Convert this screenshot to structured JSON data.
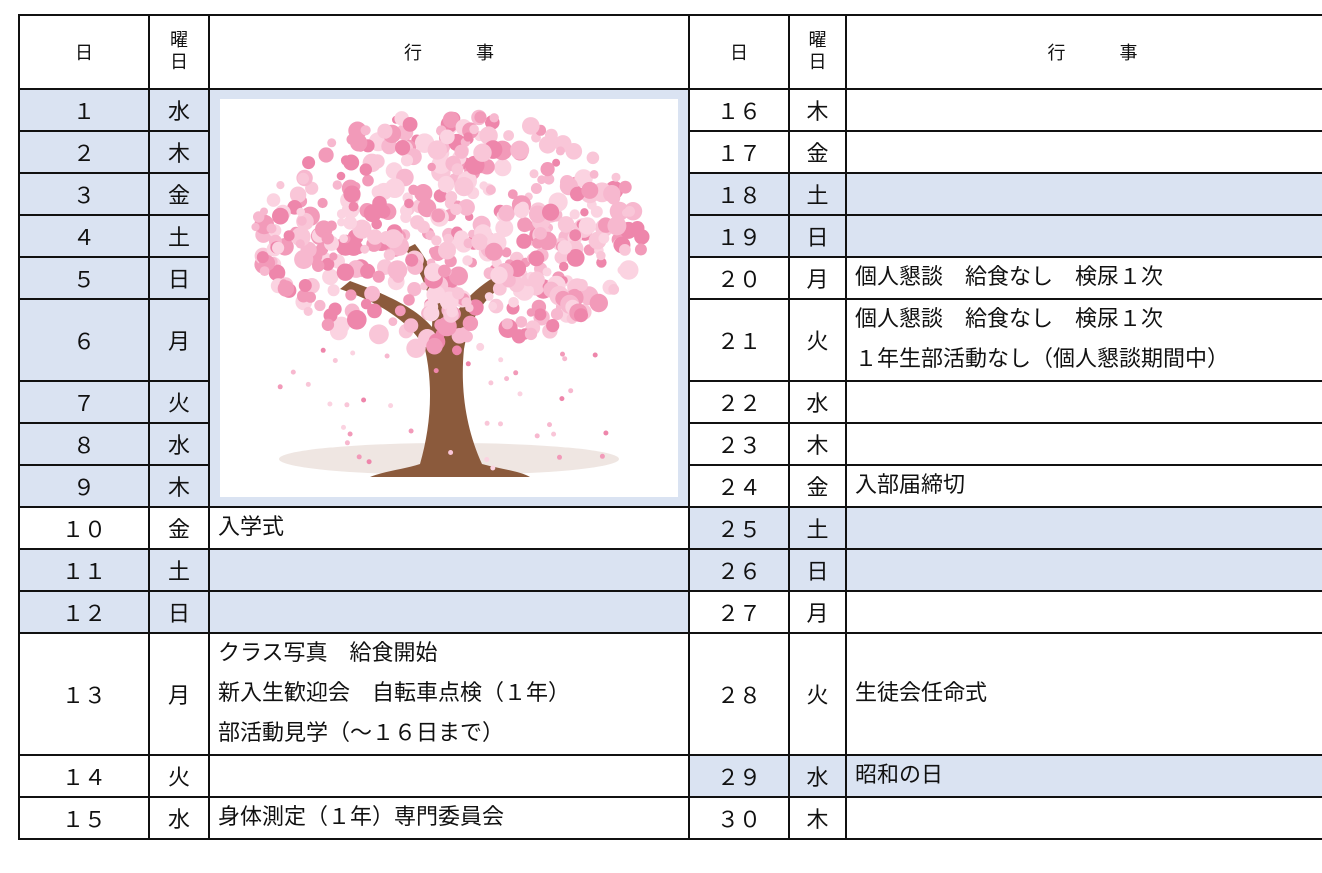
{
  "table": {
    "header": {
      "day": "日",
      "weekday": [
        "曜",
        "日"
      ],
      "events": "行　　　事"
    },
    "rows": [
      {
        "left": {
          "day": "１",
          "weekday": "水",
          "events": [],
          "shaded": true
        },
        "right": {
          "day": "１６",
          "weekday": "木",
          "events": [],
          "shaded": false
        }
      },
      {
        "left": {
          "day": "２",
          "weekday": "木",
          "events": [],
          "shaded": true
        },
        "right": {
          "day": "１７",
          "weekday": "金",
          "events": [],
          "shaded": false
        }
      },
      {
        "left": {
          "day": "３",
          "weekday": "金",
          "events": [],
          "shaded": true
        },
        "right": {
          "day": "１８",
          "weekday": "土",
          "events": [],
          "shaded": true
        }
      },
      {
        "left": {
          "day": "４",
          "weekday": "土",
          "events": [],
          "shaded": true
        },
        "right": {
          "day": "１９",
          "weekday": "日",
          "events": [],
          "shaded": true
        }
      },
      {
        "left": {
          "day": "５",
          "weekday": "日",
          "events": [],
          "shaded": true
        },
        "right": {
          "day": "２０",
          "weekday": "月",
          "events": [
            "個人懇談　給食なし　検尿１次"
          ],
          "shaded": false
        }
      },
      {
        "left": {
          "day": "６",
          "weekday": "月",
          "events": [],
          "shaded": true
        },
        "right": {
          "day": "２１",
          "weekday": "火",
          "events": [
            "個人懇談　給食なし　検尿１次",
            "１年生部活動なし（個人懇談期間中）"
          ],
          "shaded": false
        }
      },
      {
        "left": {
          "day": "７",
          "weekday": "火",
          "events": [],
          "shaded": true
        },
        "right": {
          "day": "２２",
          "weekday": "水",
          "events": [],
          "shaded": false
        }
      },
      {
        "left": {
          "day": "８",
          "weekday": "水",
          "events": [],
          "shaded": true
        },
        "right": {
          "day": "２３",
          "weekday": "木",
          "events": [],
          "shaded": false
        }
      },
      {
        "left": {
          "day": "９",
          "weekday": "木",
          "events": [],
          "shaded": true
        },
        "right": {
          "day": "２４",
          "weekday": "金",
          "events": [
            "入部届締切"
          ],
          "shaded": false
        }
      },
      {
        "left": {
          "day": "１０",
          "weekday": "金",
          "events": [
            "入学式"
          ],
          "shaded": false
        },
        "right": {
          "day": "２５",
          "weekday": "土",
          "events": [],
          "shaded": true
        }
      },
      {
        "left": {
          "day": "１１",
          "weekday": "土",
          "events": [],
          "shaded": true
        },
        "right": {
          "day": "２６",
          "weekday": "日",
          "events": [],
          "shaded": true
        }
      },
      {
        "left": {
          "day": "１２",
          "weekday": "日",
          "events": [],
          "shaded": true
        },
        "right": {
          "day": "２７",
          "weekday": "月",
          "events": [],
          "shaded": false
        }
      },
      {
        "left": {
          "day": "１３",
          "weekday": "月",
          "events": [
            "クラス写真　給食開始",
            "新入生歓迎会　自転車点検（１年）",
            "部活動見学（～１６日まで）"
          ],
          "shaded": false
        },
        "right": {
          "day": "２８",
          "weekday": "火",
          "events": [
            "生徒会任命式"
          ],
          "shaded": false
        }
      },
      {
        "left": {
          "day": "１４",
          "weekday": "火",
          "events": [],
          "shaded": false
        },
        "right": {
          "day": "２９",
          "weekday": "水",
          "events": [
            "昭和の日"
          ],
          "shaded": true
        }
      },
      {
        "left": {
          "day": "１５",
          "weekday": "水",
          "events": [
            "身体測定（１年）専門委員会"
          ],
          "shaded": false
        },
        "right": {
          "day": "３０",
          "weekday": "木",
          "events": [],
          "shaded": false
        }
      }
    ]
  }
}
